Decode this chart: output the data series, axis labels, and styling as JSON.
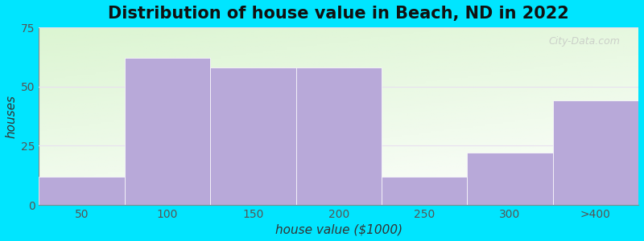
{
  "title": "Distribution of house value in Beach, ND in 2022",
  "xlabel": "house value ($1000)",
  "ylabel": "houses",
  "tick_labels": [
    "50",
    "100",
    "150",
    "200",
    "250",
    "300",
    ">400"
  ],
  "values": [
    12,
    62,
    58,
    58,
    12,
    22,
    44
  ],
  "bar_color": "#b8a9d9",
  "bar_edgecolor": "white",
  "bar_linewidth": 0.5,
  "ylim": [
    0,
    75
  ],
  "yticks": [
    0,
    25,
    50,
    75
  ],
  "xlim": [
    0,
    7
  ],
  "background_color": "#00e5ff",
  "plot_bg_color": "#f0f8ee",
  "grid_color": "#e8e0f0",
  "title_fontsize": 15,
  "axis_label_fontsize": 11,
  "tick_fontsize": 10,
  "watermark_text": "City-Data.com",
  "watermark_color": "#c0c0c0",
  "watermark_alpha": 0.7
}
